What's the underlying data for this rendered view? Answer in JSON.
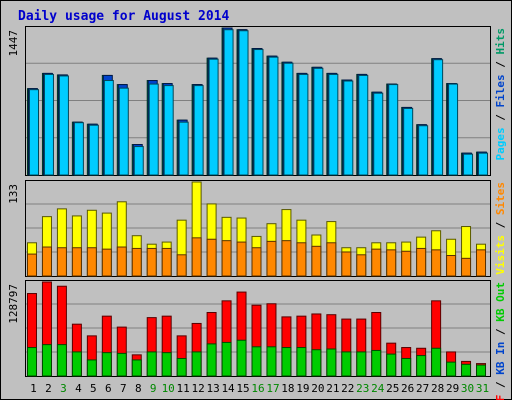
{
  "chart_data": [
    {
      "type": "bar",
      "title": "Daily usage for August 2014",
      "panel": "hits-files-pages",
      "y_max_label": "1447",
      "side_legend": [
        {
          "text": "Pages",
          "color": "#00ccff"
        },
        {
          "text": " / ",
          "color": "#000000"
        },
        {
          "text": "Files",
          "color": "#0044cc"
        },
        {
          "text": " / ",
          "color": "#000000"
        },
        {
          "text": "Hits",
          "color": "#009966"
        }
      ],
      "categories": [
        "1",
        "2",
        "3",
        "4",
        "5",
        "6",
        "7",
        "8",
        "9",
        "10",
        "11",
        "12",
        "13",
        "14",
        "15",
        "16",
        "17",
        "18",
        "19",
        "20",
        "21",
        "22",
        "23",
        "24",
        "25",
        "26",
        "27",
        "28",
        "29",
        "30",
        "31"
      ],
      "ylim": [
        0,
        1447
      ],
      "series": [
        {
          "name": "Hits",
          "color": "#009966",
          "values": [
            850,
            1000,
            985,
            520,
            500,
            980,
            890,
            300,
            930,
            900,
            540,
            890,
            1150,
            1447,
            1430,
            1245,
            1170,
            1110,
            1000,
            1060,
            1000,
            935,
            990,
            815,
            895,
            665,
            495,
            1145,
            900,
            215,
            225
          ]
        },
        {
          "name": "Files",
          "color": "#0044cc",
          "values": [
            850,
            1000,
            985,
            520,
            500,
            980,
            890,
            300,
            930,
            900,
            540,
            890,
            1150,
            1447,
            1430,
            1245,
            1170,
            1110,
            1000,
            1060,
            1000,
            935,
            990,
            815,
            895,
            665,
            495,
            1145,
            900,
            215,
            225
          ]
        },
        {
          "name": "Pages",
          "color": "#00ccff",
          "values": [
            840,
            990,
            975,
            515,
            490,
            930,
            855,
            280,
            895,
            880,
            520,
            880,
            1140,
            1430,
            1420,
            1235,
            1160,
            1100,
            990,
            1050,
            990,
            925,
            980,
            805,
            890,
            655,
            485,
            1135,
            895,
            205,
            215
          ]
        }
      ],
      "grid": true
    },
    {
      "type": "bar",
      "panel": "visits-sites",
      "y_max_label": "133",
      "side_legend": [
        {
          "text": "Visits",
          "color": "#ffff00"
        },
        {
          "text": " / ",
          "color": "#000000"
        },
        {
          "text": "Sites",
          "color": "#ff8800"
        }
      ],
      "categories": [
        "1",
        "2",
        "3",
        "4",
        "5",
        "6",
        "7",
        "8",
        "9",
        "10",
        "11",
        "12",
        "13",
        "14",
        "15",
        "16",
        "17",
        "18",
        "19",
        "20",
        "21",
        "22",
        "23",
        "24",
        "25",
        "26",
        "27",
        "28",
        "29",
        "30",
        "31"
      ],
      "ylim": [
        0,
        133
      ],
      "series": [
        {
          "name": "Visits",
          "color": "#ffff00",
          "values": [
            47,
            84,
            95,
            85,
            93,
            89,
            105,
            57,
            45,
            48,
            79,
            133,
            102,
            83,
            82,
            56,
            74,
            94,
            79,
            58,
            77,
            40,
            40,
            47,
            47,
            48,
            55,
            64,
            52,
            70,
            45
          ]
        },
        {
          "name": "Sites",
          "color": "#ff8800",
          "values": [
            31,
            41,
            40,
            40,
            40,
            38,
            41,
            39,
            39,
            39,
            30,
            54,
            52,
            50,
            48,
            40,
            49,
            50,
            47,
            42,
            47,
            34,
            30,
            38,
            37,
            35,
            39,
            37,
            29,
            25,
            37
          ]
        }
      ],
      "grid": true
    },
    {
      "type": "bar",
      "panel": "kbytes",
      "y_max_label": "128797",
      "side_legend": [
        {
          "text": "KB F",
          "color": "#ff0000"
        },
        {
          "text": " / ",
          "color": "#000000"
        },
        {
          "text": "KB In",
          "color": "#0044cc"
        },
        {
          "text": " / ",
          "color": "#000000"
        },
        {
          "text": "KB Out",
          "color": "#00cc00"
        }
      ],
      "categories": [
        "1",
        "2",
        "3",
        "4",
        "5",
        "6",
        "7",
        "8",
        "9",
        "10",
        "11",
        "12",
        "13",
        "14",
        "15",
        "16",
        "17",
        "18",
        "19",
        "20",
        "21",
        "22",
        "23",
        "24",
        "25",
        "26",
        "27",
        "28",
        "29",
        "30",
        "31"
      ],
      "ylim": [
        0,
        128797
      ],
      "series": [
        {
          "name": "KB F",
          "color": "#ff0000",
          "values": [
            113000,
            128797,
            123000,
            71000,
            55000,
            82000,
            67000,
            29000,
            80000,
            82000,
            55000,
            72000,
            87000,
            103000,
            115000,
            97000,
            99000,
            81000,
            82000,
            85000,
            84000,
            78000,
            78000,
            87000,
            45000,
            39000,
            38000,
            103000,
            33000,
            20000,
            17000
          ]
        },
        {
          "name": "KB In",
          "color": "#0044cc",
          "values": [
            0,
            0,
            0,
            0,
            0,
            0,
            0,
            0,
            0,
            0,
            0,
            0,
            0,
            0,
            0,
            0,
            0,
            0,
            0,
            0,
            0,
            0,
            0,
            0,
            0,
            0,
            0,
            0,
            0,
            0,
            0
          ]
        },
        {
          "name": "KB Out",
          "color": "#00cc00",
          "values": [
            39000,
            43000,
            43000,
            33000,
            22000,
            32000,
            31000,
            22000,
            33000,
            32000,
            24000,
            33000,
            44000,
            46000,
            49000,
            40000,
            40000,
            39000,
            39000,
            36000,
            37000,
            33000,
            33000,
            35000,
            30000,
            24000,
            28000,
            38000,
            19000,
            16000,
            15000
          ]
        }
      ],
      "grid": true
    }
  ],
  "x_labels": [
    {
      "text": "1",
      "color": "#000000"
    },
    {
      "text": "2",
      "color": "#000000"
    },
    {
      "text": "3",
      "color": "#008800"
    },
    {
      "text": "4",
      "color": "#000000"
    },
    {
      "text": "5",
      "color": "#000000"
    },
    {
      "text": "6",
      "color": "#000000"
    },
    {
      "text": "7",
      "color": "#000000"
    },
    {
      "text": "8",
      "color": "#000000"
    },
    {
      "text": "9",
      "color": "#008800"
    },
    {
      "text": "10",
      "color": "#008800"
    },
    {
      "text": "11",
      "color": "#000000"
    },
    {
      "text": "12",
      "color": "#000000"
    },
    {
      "text": "13",
      "color": "#000000"
    },
    {
      "text": "14",
      "color": "#000000"
    },
    {
      "text": "15",
      "color": "#000000"
    },
    {
      "text": "16",
      "color": "#008800"
    },
    {
      "text": "17",
      "color": "#008800"
    },
    {
      "text": "18",
      "color": "#000000"
    },
    {
      "text": "19",
      "color": "#000000"
    },
    {
      "text": "20",
      "color": "#000000"
    },
    {
      "text": "21",
      "color": "#000000"
    },
    {
      "text": "22",
      "color": "#000000"
    },
    {
      "text": "23",
      "color": "#008800"
    },
    {
      "text": "24",
      "color": "#008800"
    },
    {
      "text": "25",
      "color": "#000000"
    },
    {
      "text": "26",
      "color": "#000000"
    },
    {
      "text": "27",
      "color": "#000000"
    },
    {
      "text": "28",
      "color": "#000000"
    },
    {
      "text": "29",
      "color": "#000000"
    },
    {
      "text": "30",
      "color": "#008800"
    },
    {
      "text": "31",
      "color": "#008800"
    }
  ],
  "colors": {
    "background": "#c0c0c0",
    "panel_bg": "#c0c0c0",
    "title_color": "#0000cc",
    "grid": "#808080"
  }
}
